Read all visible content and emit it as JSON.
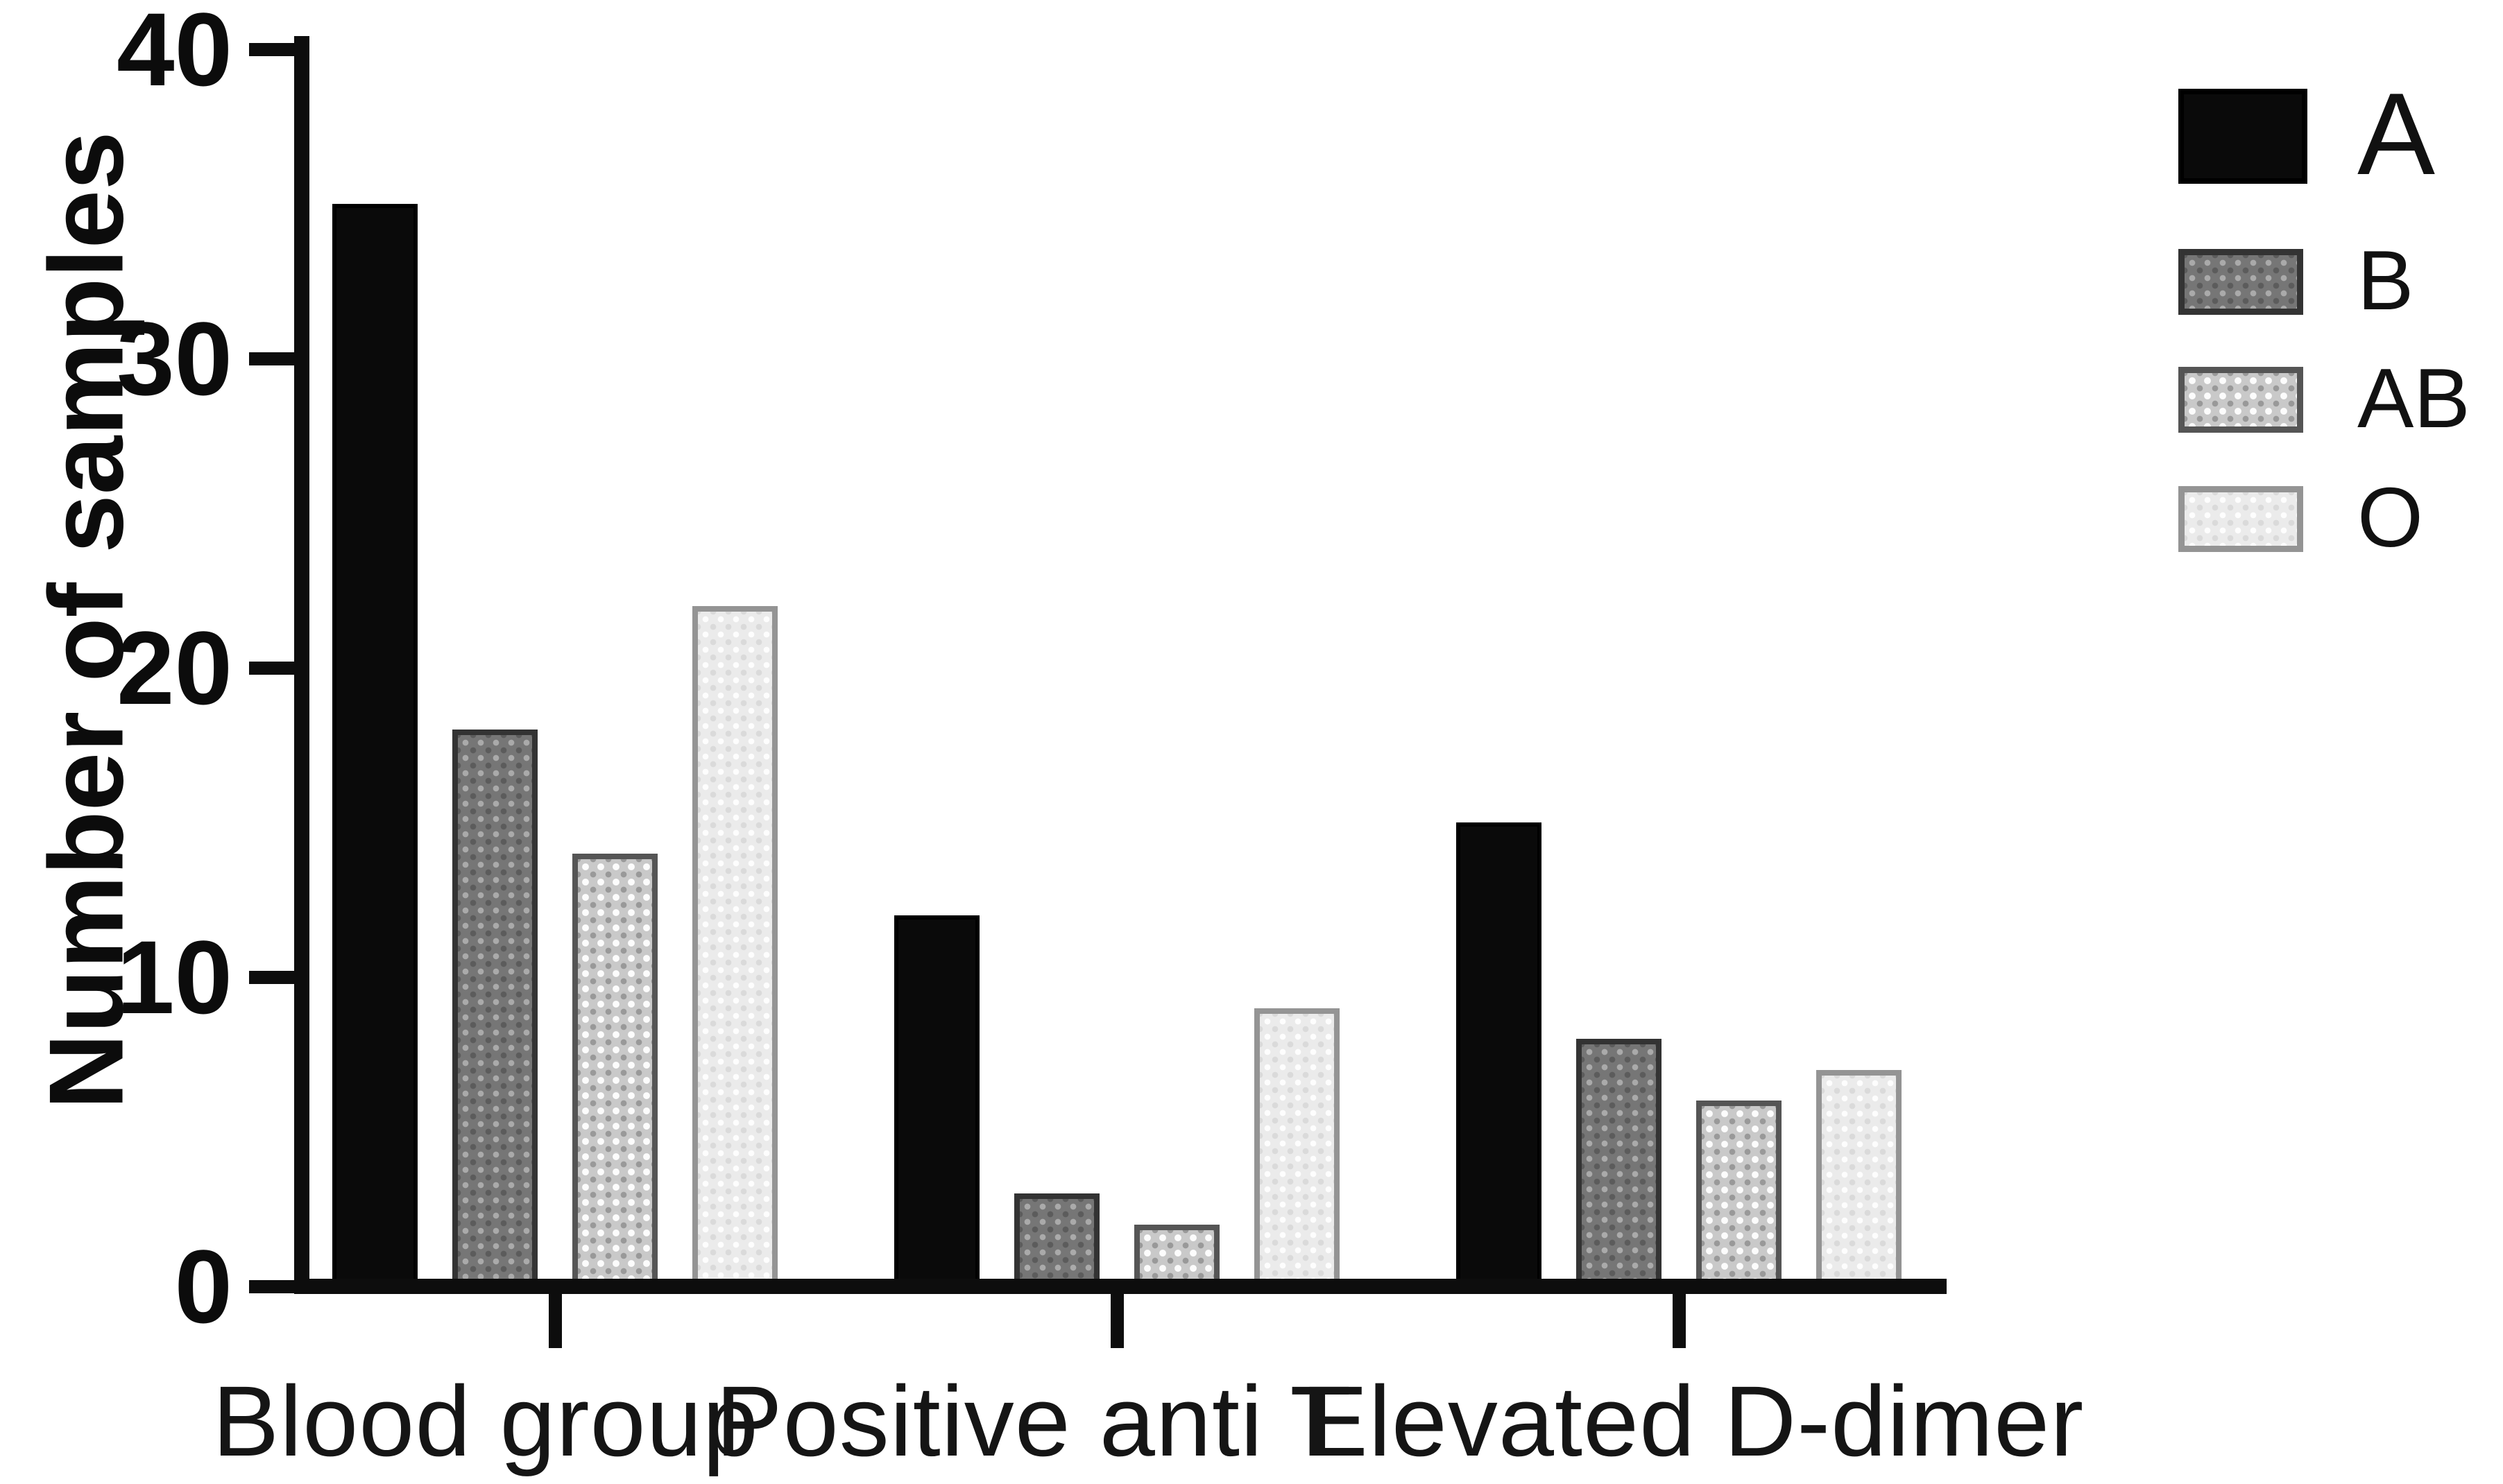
{
  "chart_data": {
    "type": "bar",
    "title": "",
    "xlabel": "",
    "ylabel": "Number of samples",
    "categories": [
      "Blood group",
      "Positive anti T",
      "Elevated D-dimer"
    ],
    "series": [
      {
        "name": "A",
        "pattern": "solid",
        "fill": "#0a0a0a",
        "border": "#000000",
        "values": [
          35,
          12,
          15
        ]
      },
      {
        "name": "B",
        "pattern": "dots-dark",
        "fill": "#767676",
        "border": "#333333",
        "values": [
          18,
          3,
          8
        ]
      },
      {
        "name": "AB",
        "pattern": "dots-medium",
        "fill": "#c9c9c9",
        "border": "#555555",
        "values": [
          14,
          2,
          6
        ]
      },
      {
        "name": "O",
        "pattern": "dots-light",
        "fill": "#ebebeb",
        "border": "#949494",
        "values": [
          22,
          9,
          7
        ]
      }
    ],
    "ylim": [
      0,
      40
    ],
    "yticks": [
      0,
      10,
      20,
      30,
      40
    ],
    "ytick_labels": [
      "0",
      "10",
      "20",
      "30",
      "40"
    ],
    "grid": false,
    "legend_position": "right-top",
    "axis_color": "#0d0d0d",
    "background": "#ffffff"
  }
}
